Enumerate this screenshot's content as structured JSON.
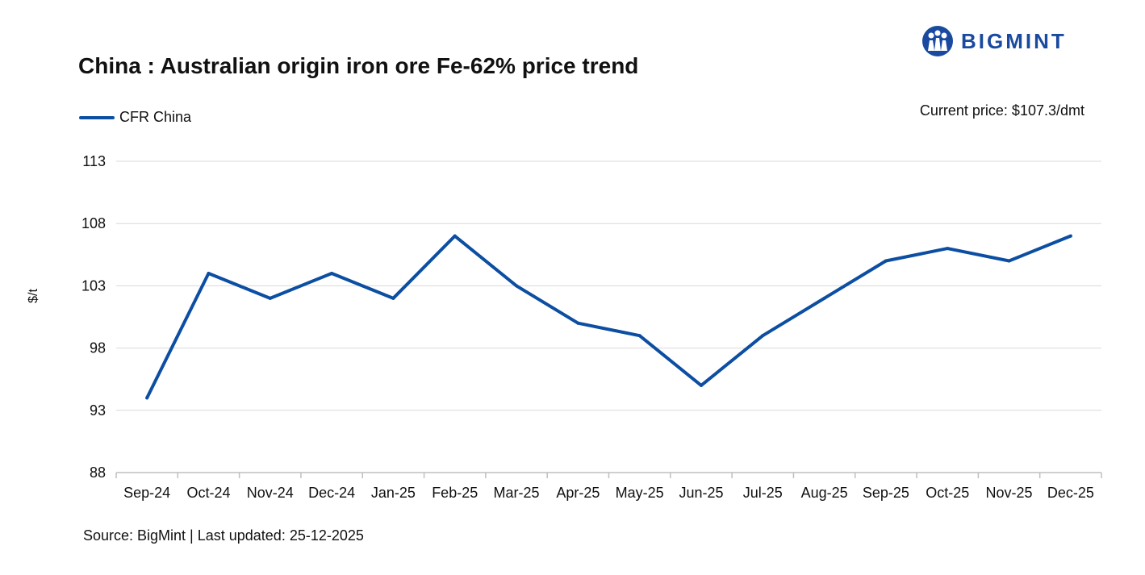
{
  "header": {
    "title": "China : Australian origin iron ore Fe-62% price trend",
    "logo_text": "BIGMINT"
  },
  "legend": {
    "series_name": "CFR China"
  },
  "annotation": {
    "current_price": "Current price: $107.3/dmt"
  },
  "footer": {
    "source": "Source: BigMint | Last updated: 25-12-2025"
  },
  "colors": {
    "line": "#0b4ea2",
    "grid": "#d9d9d9",
    "axis": "#bfbfbf",
    "logo": "#1a4aa0"
  },
  "chart_data": {
    "type": "line",
    "title": "China : Australian origin iron ore Fe-62% price trend",
    "ylabel": "$/t",
    "xlabel": "",
    "categories": [
      "Sep-24",
      "Oct-24",
      "Nov-24",
      "Dec-24",
      "Jan-25",
      "Feb-25",
      "Mar-25",
      "Apr-25",
      "May-25",
      "Jun-25",
      "Jul-25",
      "Aug-25",
      "Sep-25",
      "Oct-25",
      "Nov-25",
      "Dec-25"
    ],
    "series": [
      {
        "name": "CFR China",
        "values": [
          94,
          104,
          102,
          104,
          102,
          107,
          103,
          100,
          99,
          95,
          99,
          102,
          105,
          106,
          105,
          107
        ]
      }
    ],
    "ylim": [
      88,
      113
    ],
    "yticks": [
      88,
      93,
      98,
      103,
      108,
      113
    ],
    "grid": true,
    "legend_position": "top-left"
  }
}
